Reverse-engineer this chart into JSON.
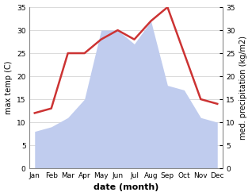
{
  "months": [
    "Jan",
    "Feb",
    "Mar",
    "Apr",
    "May",
    "Jun",
    "Jul",
    "Aug",
    "Sep",
    "Oct",
    "Nov",
    "Dec"
  ],
  "temp": [
    12,
    13,
    25,
    25,
    28,
    30,
    28,
    32,
    35,
    25,
    15,
    14
  ],
  "precip": [
    8,
    9,
    11,
    15,
    30,
    30,
    27,
    32,
    18,
    17,
    11,
    10
  ],
  "temp_color": "#cc3333",
  "precip_color": "#c0ccee",
  "ylim": [
    0,
    35
  ],
  "yticks": [
    0,
    5,
    10,
    15,
    20,
    25,
    30,
    35
  ],
  "ylabel_left": "max temp (C)",
  "ylabel_right": "med. precipitation (kg/m2)",
  "xlabel": "date (month)",
  "grid_color": "#cccccc",
  "line_width": 1.8,
  "tick_fontsize": 6.5,
  "label_fontsize": 7,
  "xlabel_fontsize": 8
}
